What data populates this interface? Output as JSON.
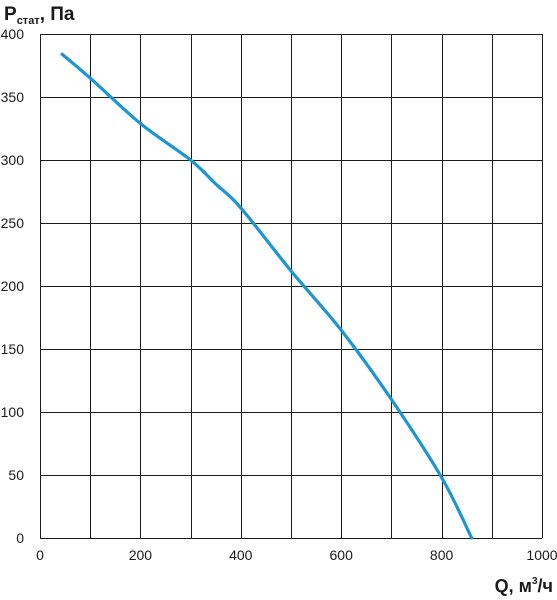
{
  "chart_data": {
    "type": "line",
    "ylabel": {
      "main": "P",
      "subscript": "стат",
      "suffix": ", Па"
    },
    "xlabel": {
      "main": "Q, м",
      "superscript": "3",
      "suffix": "/ч"
    },
    "xlim": [
      0,
      1000
    ],
    "ylim": [
      0,
      400
    ],
    "x_ticks": [
      0,
      200,
      400,
      600,
      800,
      1000
    ],
    "y_ticks": [
      0,
      50,
      100,
      150,
      200,
      250,
      300,
      350,
      400
    ],
    "x_grid_step": 100,
    "y_grid_step": 50,
    "grid": true,
    "series": [
      {
        "color": "#1b95d3",
        "x": [
          44,
          100,
          200,
          300,
          350,
          400,
          500,
          600,
          700,
          800,
          860
        ],
        "y": [
          384,
          365,
          329,
          300,
          281,
          262,
          212,
          165,
          110,
          48,
          0
        ]
      }
    ]
  }
}
